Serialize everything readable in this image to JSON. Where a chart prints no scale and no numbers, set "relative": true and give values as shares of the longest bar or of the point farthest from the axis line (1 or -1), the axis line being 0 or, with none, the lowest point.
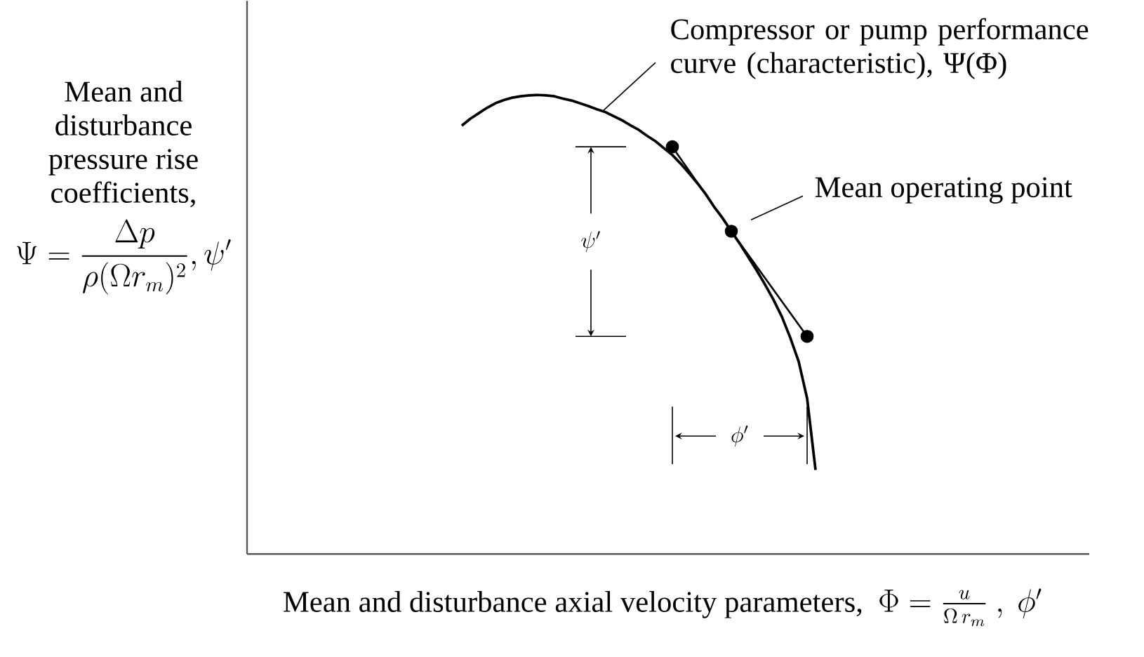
{
  "chart_data": {
    "type": "line",
    "relative": true,
    "xlabel": "\\mbox{Mean and disturbance axial velocity parameters,}\\ \\ \\Phi=\\frac{u}{\\Omega\\, r_m}\\ ,\\ \\phi'",
    "annotations": [
      "Compressor or pump performance curve (characteristic), Ψ(Φ)",
      "Mean operating point",
      "\\psi'",
      "\\phi'",
      "\\begin{array}{c}\\mbox{Mean and}\\\\ \\mbox{disturbance}\\\\ \\mbox{pressure rise}\\\\ \\mbox{coefficients,}\\\\[4pt] \\Psi=\\displaystyle\\frac{\\Delta p}{\\rho(\\Omega r_m)^2},\\psi'\\end{array}"
    ],
    "categories": [
      null,
      null,
      null,
      null,
      null,
      null,
      null,
      null,
      null,
      null,
      null,
      null,
      null,
      null,
      null,
      null,
      null,
      null,
      null,
      null,
      null,
      null,
      null,
      null,
      null,
      null,
      null,
      null,
      null,
      null,
      null,
      null,
      null,
      null,
      null,
      null,
      null,
      null,
      null,
      null,
      null,
      null,
      null
    ],
    "series": [
      {
        "color": "#000000",
        "marker": "none",
        "values": [
          0.933,
          0.948,
          0.96,
          0.972,
          0.982,
          0.989,
          0.994,
          0.997,
          0.999,
          1,
          0.999,
          0.997,
          0.992,
          0.988,
          0.982,
          0.976,
          0.969,
          0.963,
          0.954,
          0.945,
          0.934,
          0.924,
          0.911,
          0.899,
          0.884,
          0.869,
          0.85,
          0.829,
          0.807,
          0.783,
          0.755,
          0.731,
          0.703,
          0.676,
          0.647,
          0.618,
          0.587,
          0.554,
          0.517,
          0.471,
          0.419,
          0.339,
          0.183
        ]
      },
      {
        "color": "#000000",
        "marker": "circle",
        "values": [
          null,
          null,
          null,
          null,
          null,
          null,
          null,
          null,
          null,
          null,
          null,
          null,
          null,
          null,
          null,
          null,
          null,
          null,
          null,
          null,
          null,
          null,
          null,
          null,
          null,
          0.887,
          null,
          null,
          null,
          null,
          null,
          null,
          0.703,
          null,
          null,
          null,
          null,
          null,
          null,
          null,
          null,
          0.474,
          null
        ]
      }
    ]
  }
}
